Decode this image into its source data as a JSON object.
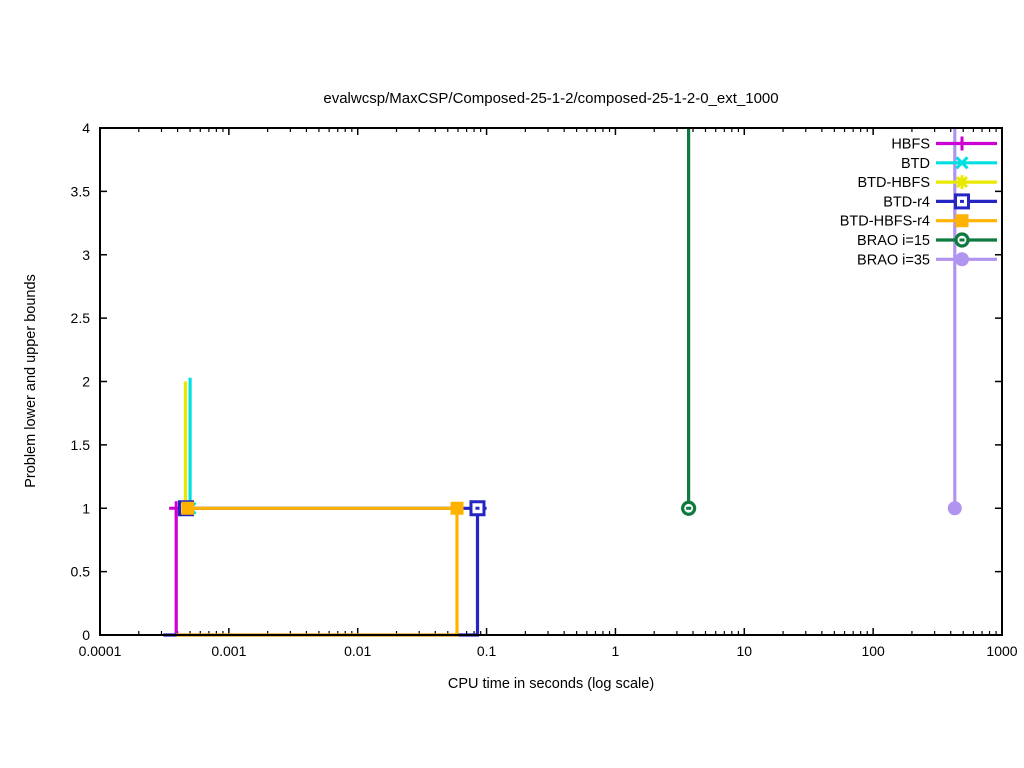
{
  "page": {
    "background": "#ffffff",
    "foreground": "#000000"
  },
  "chart_data": {
    "type": "line",
    "title": "evalwcsp/MaxCSP/Composed-25-1-2/composed-25-1-2-0_ext_1000",
    "xlabel": "CPU time in seconds (log scale)",
    "ylabel": "Problem lower and upper bounds",
    "x_scale": "log",
    "y_scale": "linear",
    "xlim": [
      0.0001,
      1000
    ],
    "ylim": [
      0,
      4
    ],
    "x_tick_labels": [
      "0.0001",
      "0.001",
      "0.01",
      "0.1",
      "1",
      "10",
      "100",
      "1000"
    ],
    "y_tick_labels": [
      "0",
      "0.5",
      "1",
      "1.5",
      "2",
      "2.5",
      "3",
      "3.5",
      "4"
    ],
    "grid": false,
    "legend_position": "top-right-inside",
    "series": [
      {
        "name": "HBFS",
        "color": "#cc00d2",
        "marker": "plus",
        "segments": [
          [
            [
              0.00039,
              0
            ],
            [
              0.00039,
              1
            ]
          ]
        ],
        "points": [
          [
            0.00039,
            1
          ]
        ]
      },
      {
        "name": "BTD",
        "color": "#00e0e0",
        "marker": "x",
        "segments": [
          [
            [
              0.0005,
              2.03
            ],
            [
              0.0005,
              1
            ]
          ]
        ],
        "points": [
          [
            0.0005,
            1
          ]
        ]
      },
      {
        "name": "BTD-HBFS",
        "color": "#e9e900",
        "marker": "star",
        "segments": [
          [
            [
              0.00046,
              2.0
            ],
            [
              0.00046,
              1
            ]
          ]
        ],
        "points": [
          [
            0.00046,
            1
          ]
        ]
      },
      {
        "name": "BTD-r4",
        "color": "#2525c3",
        "marker": "open-square",
        "segments": [
          [
            [
              0.000465,
              1
            ],
            [
              0.1,
              1
            ]
          ],
          [
            [
              0.00031,
              0
            ],
            [
              0.085,
              0
            ],
            [
              0.085,
              1
            ]
          ]
        ],
        "points": [
          [
            0.000465,
            1
          ],
          [
            0.085,
            1
          ]
        ]
      },
      {
        "name": "BTD-HBFS-r4",
        "color": "#ffb300",
        "marker": "filled-square",
        "segments": [
          [
            [
              0.00048,
              1
            ],
            [
              0.059,
              1
            ],
            [
              0.059,
              0
            ],
            [
              0.00039,
              0
            ]
          ]
        ],
        "points": [
          [
            0.00048,
            1
          ],
          [
            0.059,
            1
          ]
        ]
      },
      {
        "name": "BRAO i=15",
        "color": "#0f7a3e",
        "marker": "open-circle",
        "segments": [
          [
            [
              3.7,
              4
            ],
            [
              3.7,
              1
            ]
          ]
        ],
        "points": [
          [
            3.7,
            1
          ]
        ]
      },
      {
        "name": "BRAO i=35",
        "color": "#b193f0",
        "marker": "filled-circle",
        "segments": [
          [
            [
              430,
              4
            ],
            [
              430,
              1
            ]
          ]
        ],
        "points": [
          [
            430,
            1
          ]
        ]
      }
    ]
  }
}
